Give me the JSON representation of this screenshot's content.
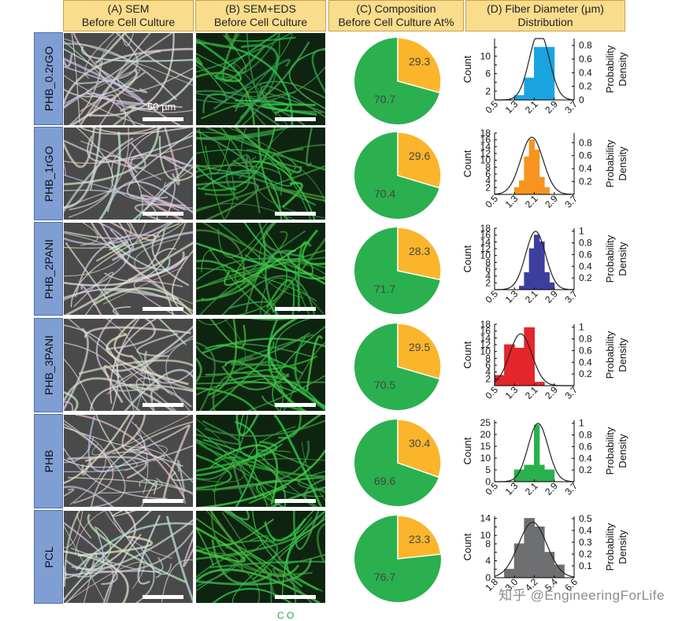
{
  "headers": [
    {
      "line1": "(A) SEM",
      "line2": "Before Cell Culture"
    },
    {
      "line1": "(B) SEM+EDS",
      "line2": "Before Cell Culture"
    },
    {
      "line1": "(C) Composition",
      "line2": "Before Cell Culture At%"
    },
    {
      "line1": "(D) Fiber Diameter (µm)",
      "line2": "Distribution"
    }
  ],
  "rows": [
    "PHB_0.2rGO",
    "PHB_1rGO",
    "PHB_2PANI",
    "PHB_3PANI",
    "PHB",
    "PCL"
  ],
  "scale_label": "50 µm",
  "colors": {
    "pie_green": "#2ab04e",
    "pie_orange": "#fbb52b",
    "hist": [
      "#1aa5e0",
      "#f6941f",
      "#3d3f9e",
      "#e3262b",
      "#2ab04e",
      "#6e6f71"
    ]
  },
  "axis_labels": {
    "left": "Count",
    "right_line1": "Probability",
    "right_line2": "Density"
  },
  "watermark": "知乎 @EngineeringForLife",
  "legend_fragment": "C  O",
  "chart_data": [
    {
      "type": "pie",
      "title": "(C) Composition Before Cell Culture At%",
      "row": "PHB_0.2rGO",
      "labels": [
        "C",
        "O"
      ],
      "values": [
        70.7,
        29.3
      ]
    },
    {
      "type": "pie",
      "title": "(C) Composition Before Cell Culture At%",
      "row": "PHB_1rGO",
      "labels": [
        "C",
        "O"
      ],
      "values": [
        70.4,
        29.6
      ]
    },
    {
      "type": "pie",
      "title": "(C) Composition Before Cell Culture At%",
      "row": "PHB_2PANI",
      "labels": [
        "C",
        "O"
      ],
      "values": [
        71.7,
        28.3
      ]
    },
    {
      "type": "pie",
      "title": "(C) Composition Before Cell Culture At%",
      "row": "PHB_3PANI",
      "labels": [
        "C",
        "O"
      ],
      "values": [
        70.5,
        29.5
      ]
    },
    {
      "type": "pie",
      "title": "(C) Composition Before Cell Culture At%",
      "row": "PHB",
      "labels": [
        "C",
        "O"
      ],
      "values": [
        69.6,
        30.4
      ]
    },
    {
      "type": "pie",
      "title": "(C) Composition Before Cell Culture At%",
      "row": "PCL",
      "labels": [
        "C",
        "O"
      ],
      "values": [
        76.7,
        23.3
      ]
    },
    {
      "type": "bar",
      "title": "(D) Fiber Diameter (µm) Distribution",
      "row": "PHB_0.2rGO",
      "xlabel": "",
      "ylabel": "Count",
      "y2label": "Probability Density",
      "bin_edges": [
        1.3,
        1.7,
        2.1,
        2.5,
        2.9
      ],
      "counts": [
        1,
        5,
        12,
        12
      ],
      "xticks": [
        "0.5",
        "1.3",
        "2.1",
        "2.9",
        "3.7"
      ],
      "xlim": [
        0.5,
        3.7
      ],
      "yticks": [
        0,
        2,
        4,
        6,
        8,
        10,
        12
      ],
      "ytick_labels": [
        "",
        "2",
        "",
        "6",
        "",
        "10",
        ""
      ],
      "ylim": [
        0,
        14
      ],
      "y2ticks": [
        0,
        0.2,
        0.4,
        0.6,
        0.8
      ],
      "y2lim": [
        0,
        0.9
      ],
      "fit": {
        "mean": 2.3,
        "sd": 0.4
      }
    },
    {
      "type": "bar",
      "title": "(D) Fiber Diameter (µm) Distribution",
      "row": "PHB_1rGO",
      "xlabel": "",
      "ylabel": "Count",
      "y2label": "Probability Density",
      "bin_edges": [
        1.3,
        1.5,
        1.7,
        1.9,
        2.1,
        2.3,
        2.5,
        2.7
      ],
      "counts": [
        2,
        4,
        11,
        16,
        13,
        5,
        2
      ],
      "xticks": [
        "0.5",
        "1.3",
        "2.1",
        "2.9",
        "3.7"
      ],
      "xlim": [
        0.5,
        3.7
      ],
      "yticks": [
        2,
        4,
        6,
        8,
        10,
        12,
        14,
        16,
        18
      ],
      "ytick_labels": [
        "2",
        "4",
        "6",
        "8",
        "10",
        "12",
        "14",
        "16",
        "18"
      ],
      "ylim": [
        0,
        18
      ],
      "y2ticks": [
        0.2,
        0.4,
        0.6,
        0.8
      ],
      "y2lim": [
        0,
        0.95
      ],
      "fit": {
        "mean": 2.0,
        "sd": 0.45
      }
    },
    {
      "type": "bar",
      "title": "(D) Fiber Diameter (µm) Distribution",
      "row": "PHB_2PANI",
      "xlabel": "",
      "ylabel": "Count",
      "y2label": "Probability Density",
      "bin_edges": [
        1.5,
        1.7,
        1.9,
        2.1,
        2.3,
        2.5,
        2.7,
        2.9
      ],
      "counts": [
        1,
        5,
        12,
        16,
        14,
        5,
        2
      ],
      "xticks": [
        "0.5",
        "1.3",
        "2.1",
        "2.9",
        "3.7"
      ],
      "xlim": [
        0.5,
        3.7
      ],
      "yticks": [
        2,
        4,
        6,
        8,
        10,
        12,
        14,
        16,
        18
      ],
      "ytick_labels": [
        "2",
        "4",
        "6",
        "8",
        "10",
        "12",
        "14",
        "16",
        "18"
      ],
      "ylim": [
        0,
        18
      ],
      "y2ticks": [
        0.2,
        0.4,
        0.6,
        0.8,
        1.0
      ],
      "y2lim": [
        0,
        1.05
      ],
      "fit": {
        "mean": 2.15,
        "sd": 0.4
      }
    },
    {
      "type": "bar",
      "title": "(D) Fiber Diameter (µm) Distribution",
      "row": "PHB_3PANI",
      "xlabel": "",
      "ylabel": "Count",
      "y2label": "Probability Density",
      "bin_edges": [
        0.5,
        0.9,
        1.3,
        1.7,
        2.1,
        2.5,
        2.9
      ],
      "counts": [
        3,
        12,
        11,
        17,
        1,
        0
      ],
      "xticks": [
        "0.5",
        "1.3",
        "2.1",
        "2.9",
        "3.7"
      ],
      "xlim": [
        0.5,
        3.7
      ],
      "yticks": [
        2,
        4,
        6,
        8,
        10,
        12,
        14,
        16,
        18
      ],
      "ytick_labels": [
        "2",
        "4",
        "6",
        "8",
        "10",
        "12",
        "14",
        "16",
        "18"
      ],
      "ylim": [
        0,
        18
      ],
      "y2ticks": [
        0.2,
        0.4,
        0.6,
        0.8,
        1.0
      ],
      "y2lim": [
        0,
        1.05
      ],
      "fit": {
        "mean": 1.55,
        "sd": 0.45
      }
    },
    {
      "type": "bar",
      "title": "(D) Fiber Diameter (µm) Distribution",
      "row": "PHB",
      "xlabel": "",
      "ylabel": "Count",
      "y2label": "Probability Density",
      "bin_edges": [
        1.3,
        1.7,
        2.1,
        2.3,
        2.5,
        2.9
      ],
      "counts": [
        5,
        7,
        24,
        7,
        5
      ],
      "xticks": [
        "0.5",
        "1.3",
        "2.1",
        "2.9",
        "3.7"
      ],
      "xlim": [
        0.5,
        3.7
      ],
      "yticks": [
        0,
        5,
        10,
        15,
        20,
        25
      ],
      "ytick_labels": [
        "0",
        "5",
        "10",
        "15",
        "20",
        "25"
      ],
      "ylim": [
        0,
        26
      ],
      "y2ticks": [
        0.2,
        0.4,
        0.6,
        0.8,
        1.0
      ],
      "y2lim": [
        0,
        1.05
      ],
      "fit": {
        "mean": 2.25,
        "sd": 0.4
      }
    },
    {
      "type": "bar",
      "title": "(D) Fiber Diameter (µm) Distribution",
      "row": "PCL",
      "xlabel": "",
      "ylabel": "Count",
      "y2label": "Probability Density",
      "bin_edges": [
        2.4,
        3.0,
        3.6,
        4.2,
        4.8,
        5.4,
        6.0
      ],
      "counts": [
        2,
        8,
        14,
        12,
        6,
        3
      ],
      "xticks": [
        "1.8",
        "3.0",
        "4.2",
        "5.4",
        "6.6"
      ],
      "xlim": [
        1.8,
        6.6
      ],
      "yticks": [
        0,
        2,
        4,
        6,
        8,
        10,
        12,
        14
      ],
      "ytick_labels": [
        "0",
        "",
        "4",
        "",
        "8",
        "10",
        "",
        "14"
      ],
      "ylim": [
        0,
        14.5
      ],
      "y2ticks": [
        0.1,
        0.2,
        0.3,
        0.4,
        0.5
      ],
      "y2lim": [
        0,
        0.52
      ],
      "fit": {
        "mean": 4.1,
        "sd": 0.85
      }
    }
  ]
}
